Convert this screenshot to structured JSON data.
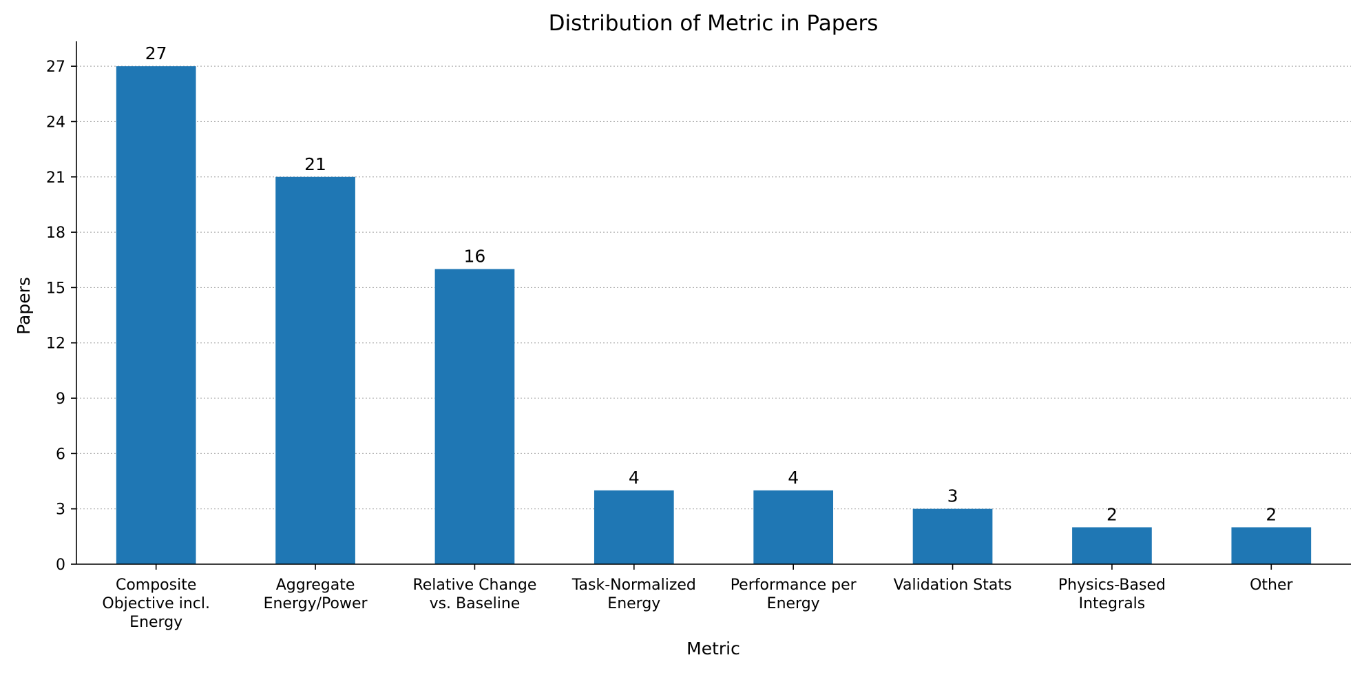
{
  "chart_data": {
    "type": "bar",
    "title": "Distribution of Metric in Papers",
    "xlabel": "Metric",
    "ylabel": "Papers",
    "categories": [
      [
        "Composite",
        "Objective incl.",
        "Energy"
      ],
      [
        "Aggregate",
        "Energy/Power"
      ],
      [
        "Relative Change",
        "vs. Baseline"
      ],
      [
        "Task-Normalized",
        "Energy"
      ],
      [
        "Performance per",
        "Energy"
      ],
      [
        "Validation Stats"
      ],
      [
        "Physics-Based",
        "Integrals"
      ],
      [
        "Other"
      ]
    ],
    "values": [
      27,
      21,
      16,
      4,
      4,
      3,
      2,
      2
    ],
    "data_labels": [
      "27",
      "21",
      "16",
      "4",
      "4",
      "3",
      "2",
      "2"
    ],
    "y_ticks": [
      0,
      3,
      6,
      9,
      12,
      15,
      18,
      21,
      24,
      27
    ],
    "ylim": [
      0,
      28.35
    ],
    "grid": "horizontal dotted",
    "legend": "none",
    "colors": {
      "bar": "#1f77b4",
      "grid": "#b0b0b0",
      "axis": "#000000"
    }
  }
}
